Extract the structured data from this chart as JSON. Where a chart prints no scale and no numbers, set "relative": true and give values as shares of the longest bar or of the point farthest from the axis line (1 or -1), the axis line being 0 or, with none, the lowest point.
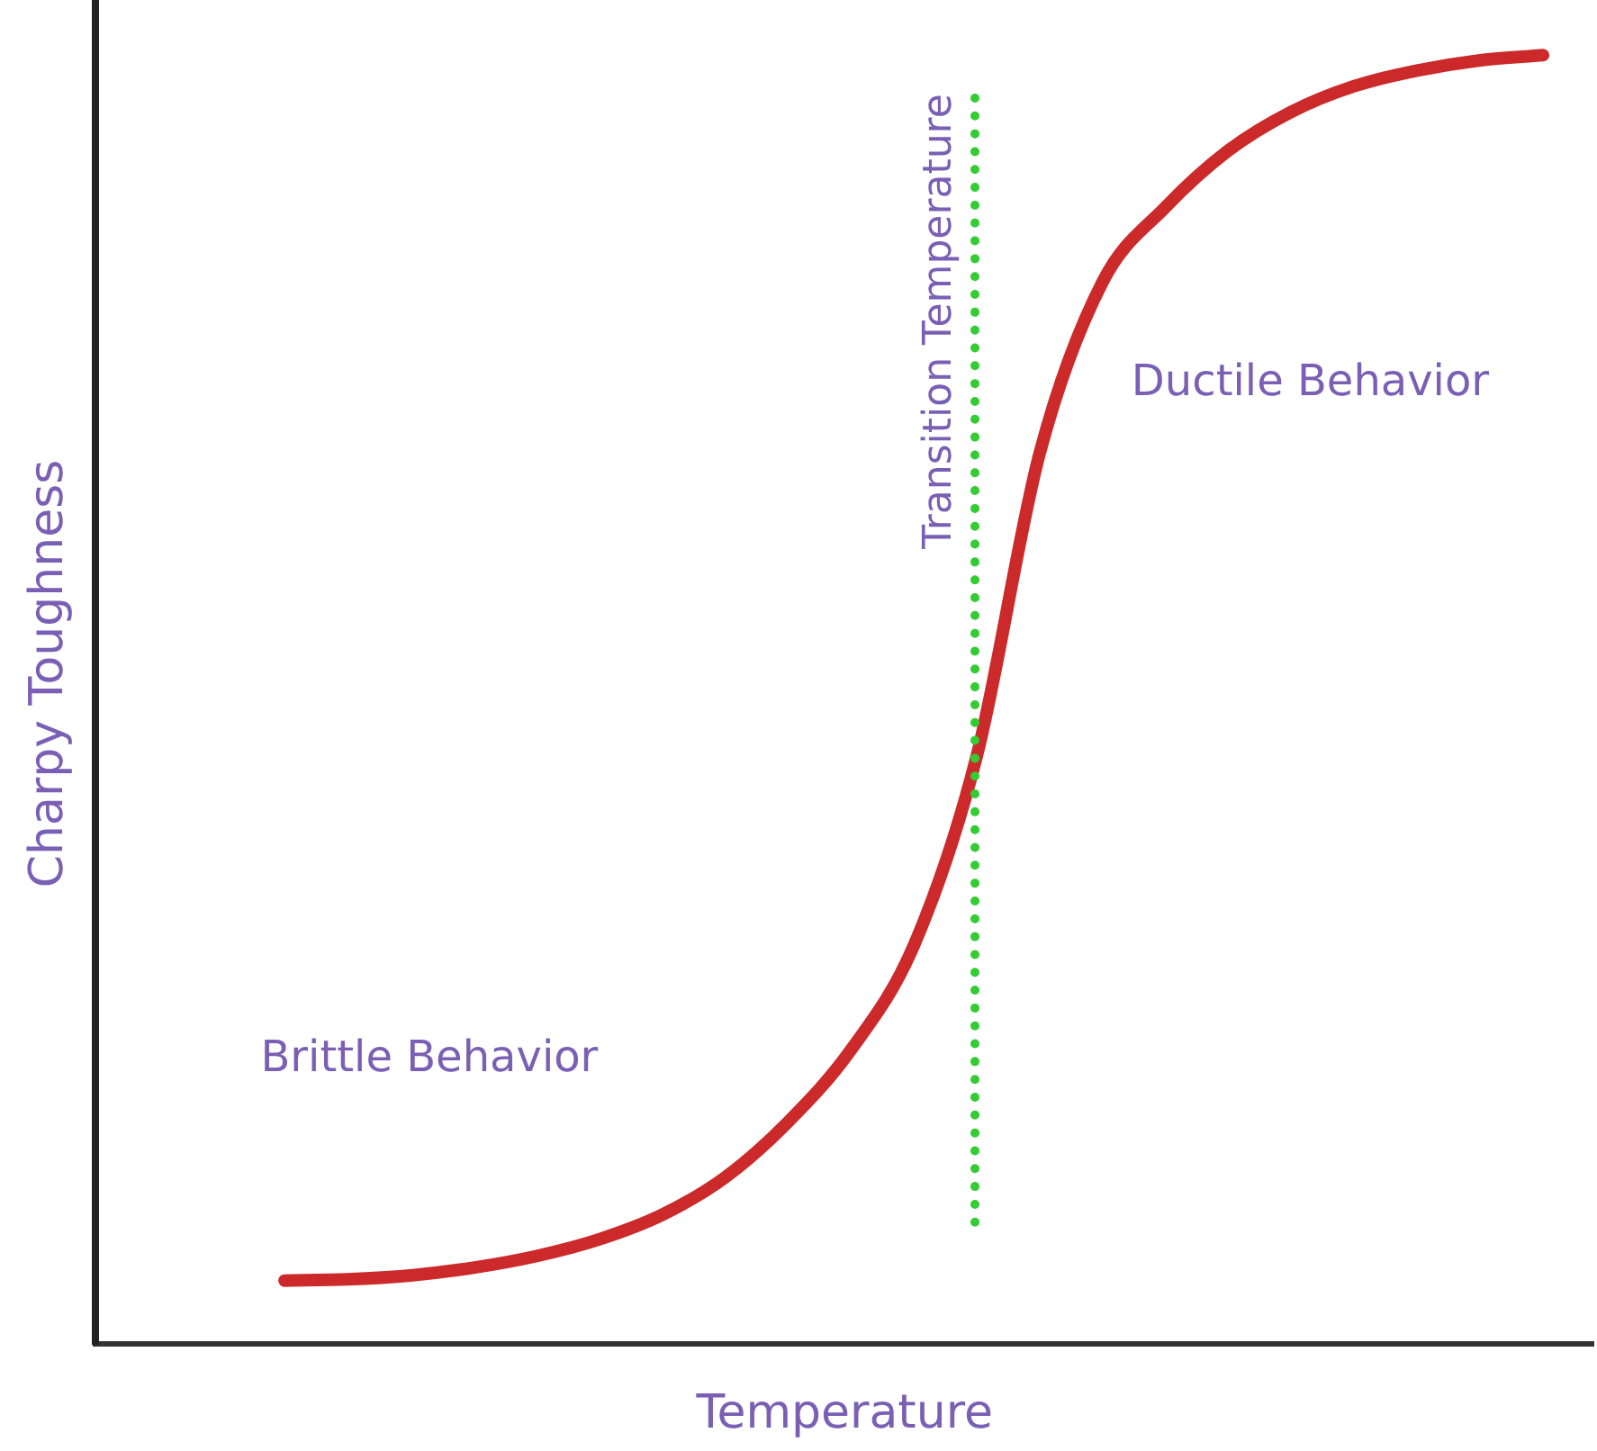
{
  "chart_data": {
    "type": "line",
    "relative": true,
    "xlabel": "Temperature",
    "ylabel": "Charpy Toughness",
    "categories": [
      null,
      null,
      null,
      null,
      null,
      null,
      null,
      null,
      null,
      null,
      null,
      null,
      null,
      null,
      null,
      null,
      null,
      null,
      null,
      null,
      null
    ],
    "series": [
      {
        "color": "#cc2a2a",
        "values": [
          0.049,
          0.05,
          0.053,
          0.059,
          0.068,
          0.081,
          0.1,
          0.129,
          0.172,
          0.228,
          0.309,
          0.456,
          0.691,
          0.824,
          0.882,
          0.926,
          0.956,
          0.976,
          0.988,
          0.996,
          1
        ]
      }
    ],
    "annotations": [
      "Transition Temperature",
      "Brittle Behavior",
      "Ductile Behavior"
    ],
    "grid": false,
    "legend": false,
    "marker": "none",
    "line_style": "solid"
  }
}
